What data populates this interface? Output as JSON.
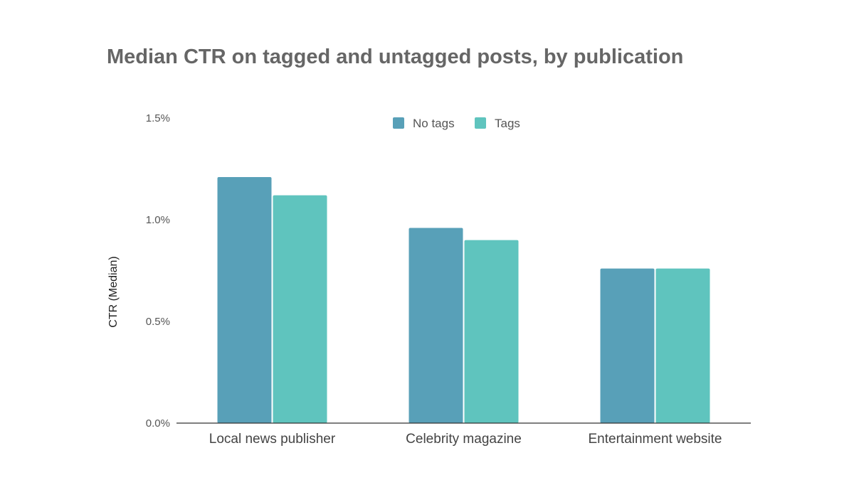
{
  "chart_data": {
    "type": "bar",
    "title": "Median CTR on tagged and untagged posts, by publication",
    "xlabel": "",
    "ylabel": "CTR (Median)",
    "categories": [
      "Local news publisher",
      "Celebrity magazine",
      "Entertainment website"
    ],
    "series": [
      {
        "name": "No tags",
        "values": [
          1.21,
          0.96,
          0.76
        ]
      },
      {
        "name": "Tags",
        "values": [
          1.12,
          0.9,
          0.76
        ]
      }
    ],
    "ylim": [
      0,
      1.5
    ],
    "yticks": [
      0,
      0.5,
      1.0,
      1.5
    ],
    "ytick_labels": [
      "0.0%",
      "0.5%",
      "1.0%",
      "1.5%"
    ],
    "grid": false,
    "legend": "top-center",
    "colors": {
      "No tags": "#58a0b8",
      "Tags": "#5fc4be"
    }
  }
}
